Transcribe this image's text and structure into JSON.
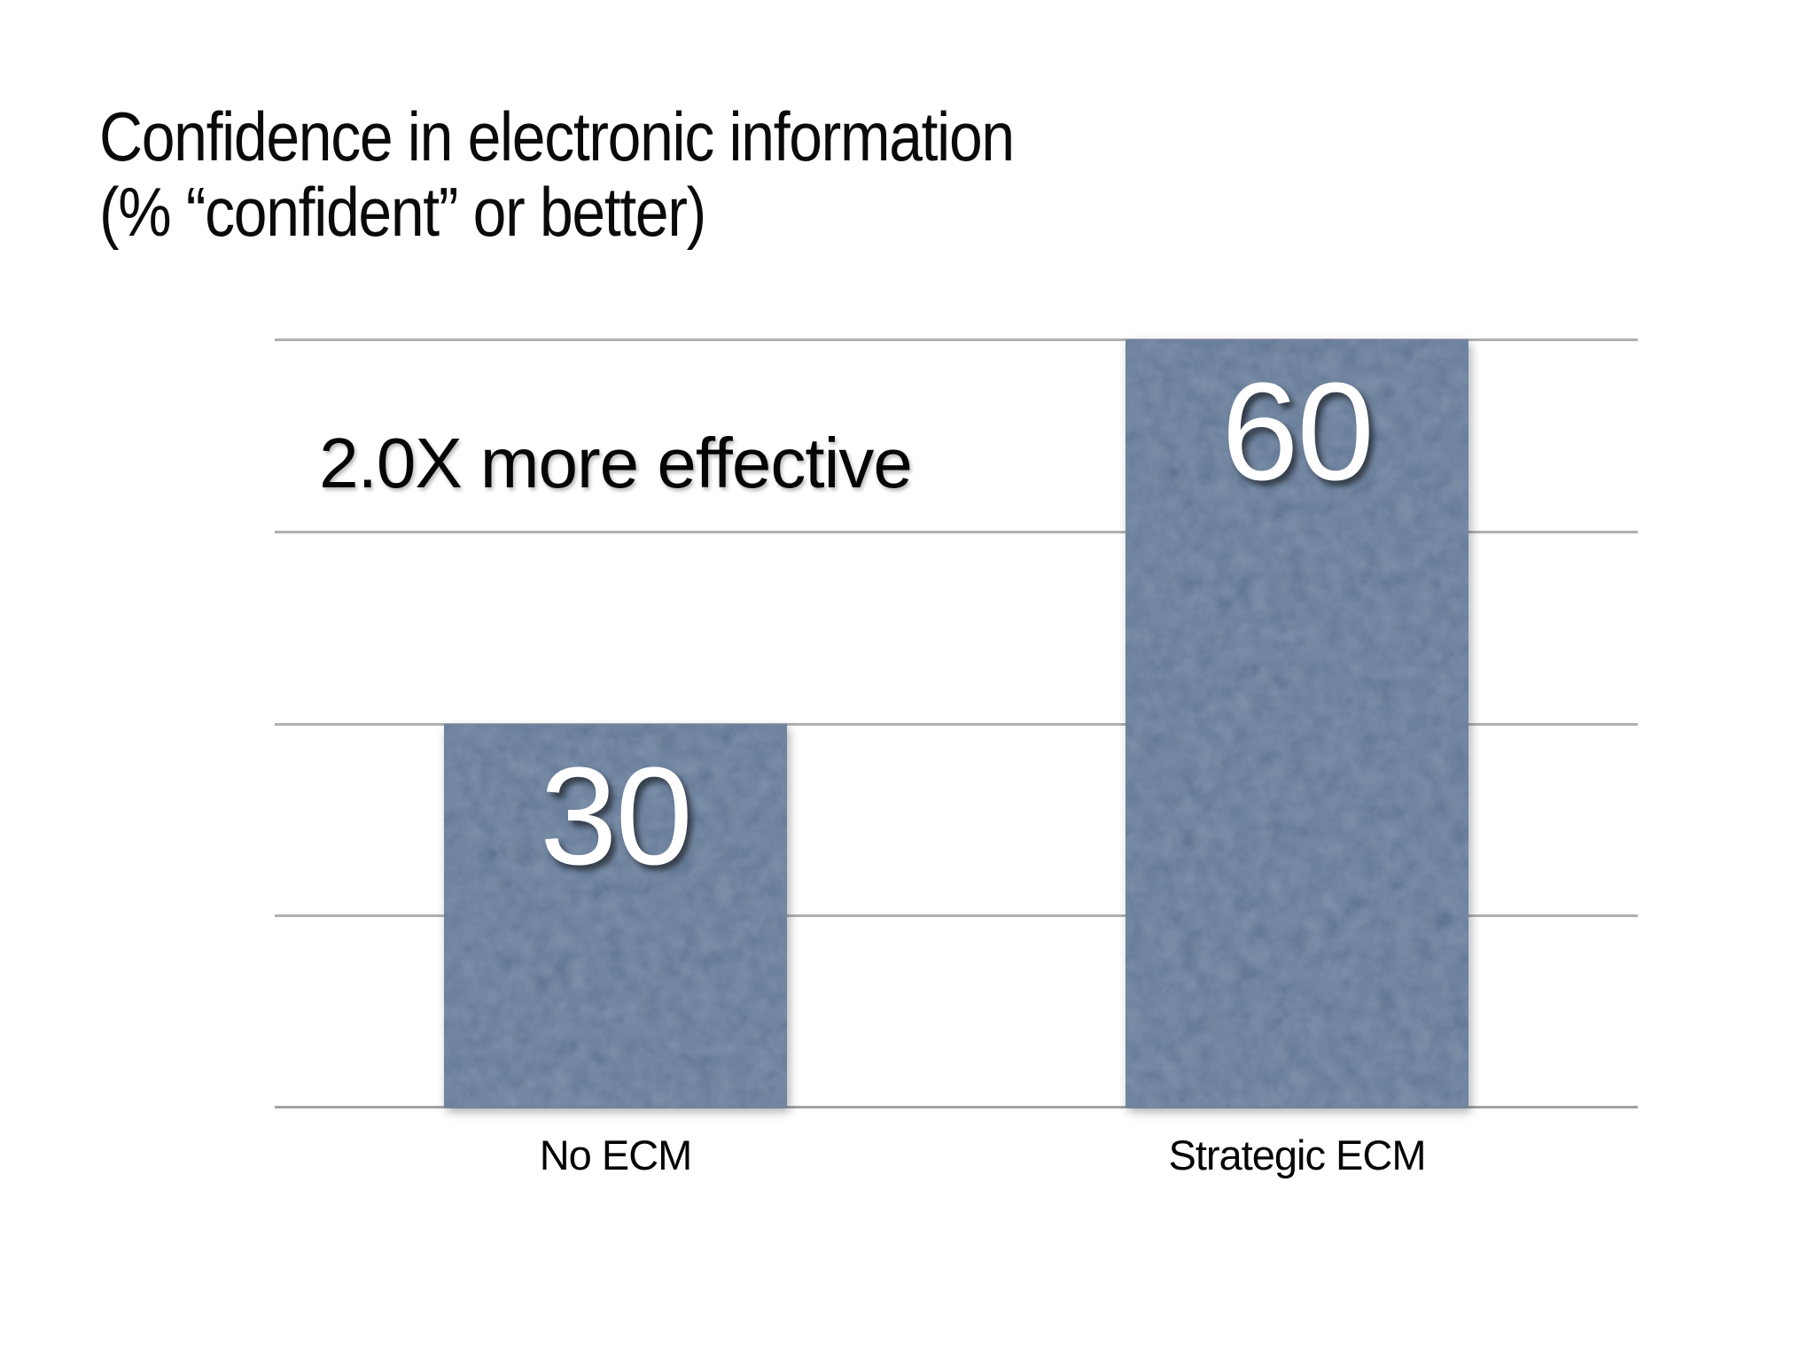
{
  "title": {
    "line1": "Confidence in electronic information",
    "line2": "(% “confident” or better)"
  },
  "chart_data": {
    "type": "bar",
    "title": "Confidence in electronic information (% “confident” or better)",
    "categories": [
      "No ECM",
      "Strategic ECM"
    ],
    "values": [
      30,
      60
    ],
    "value_labels": [
      "30",
      "60"
    ],
    "annotation": "2.0X more effective",
    "xlabel": "",
    "ylabel": "",
    "ylim": [
      0,
      60
    ],
    "gridline_values": [
      0,
      15,
      30,
      45,
      60
    ],
    "grid": "horizontal",
    "legend_position": "none",
    "bar_color": "#5e7492",
    "gridline_color": "#b0b0b0",
    "value_label_color": "#ffffff",
    "background_color": "#ffffff"
  }
}
